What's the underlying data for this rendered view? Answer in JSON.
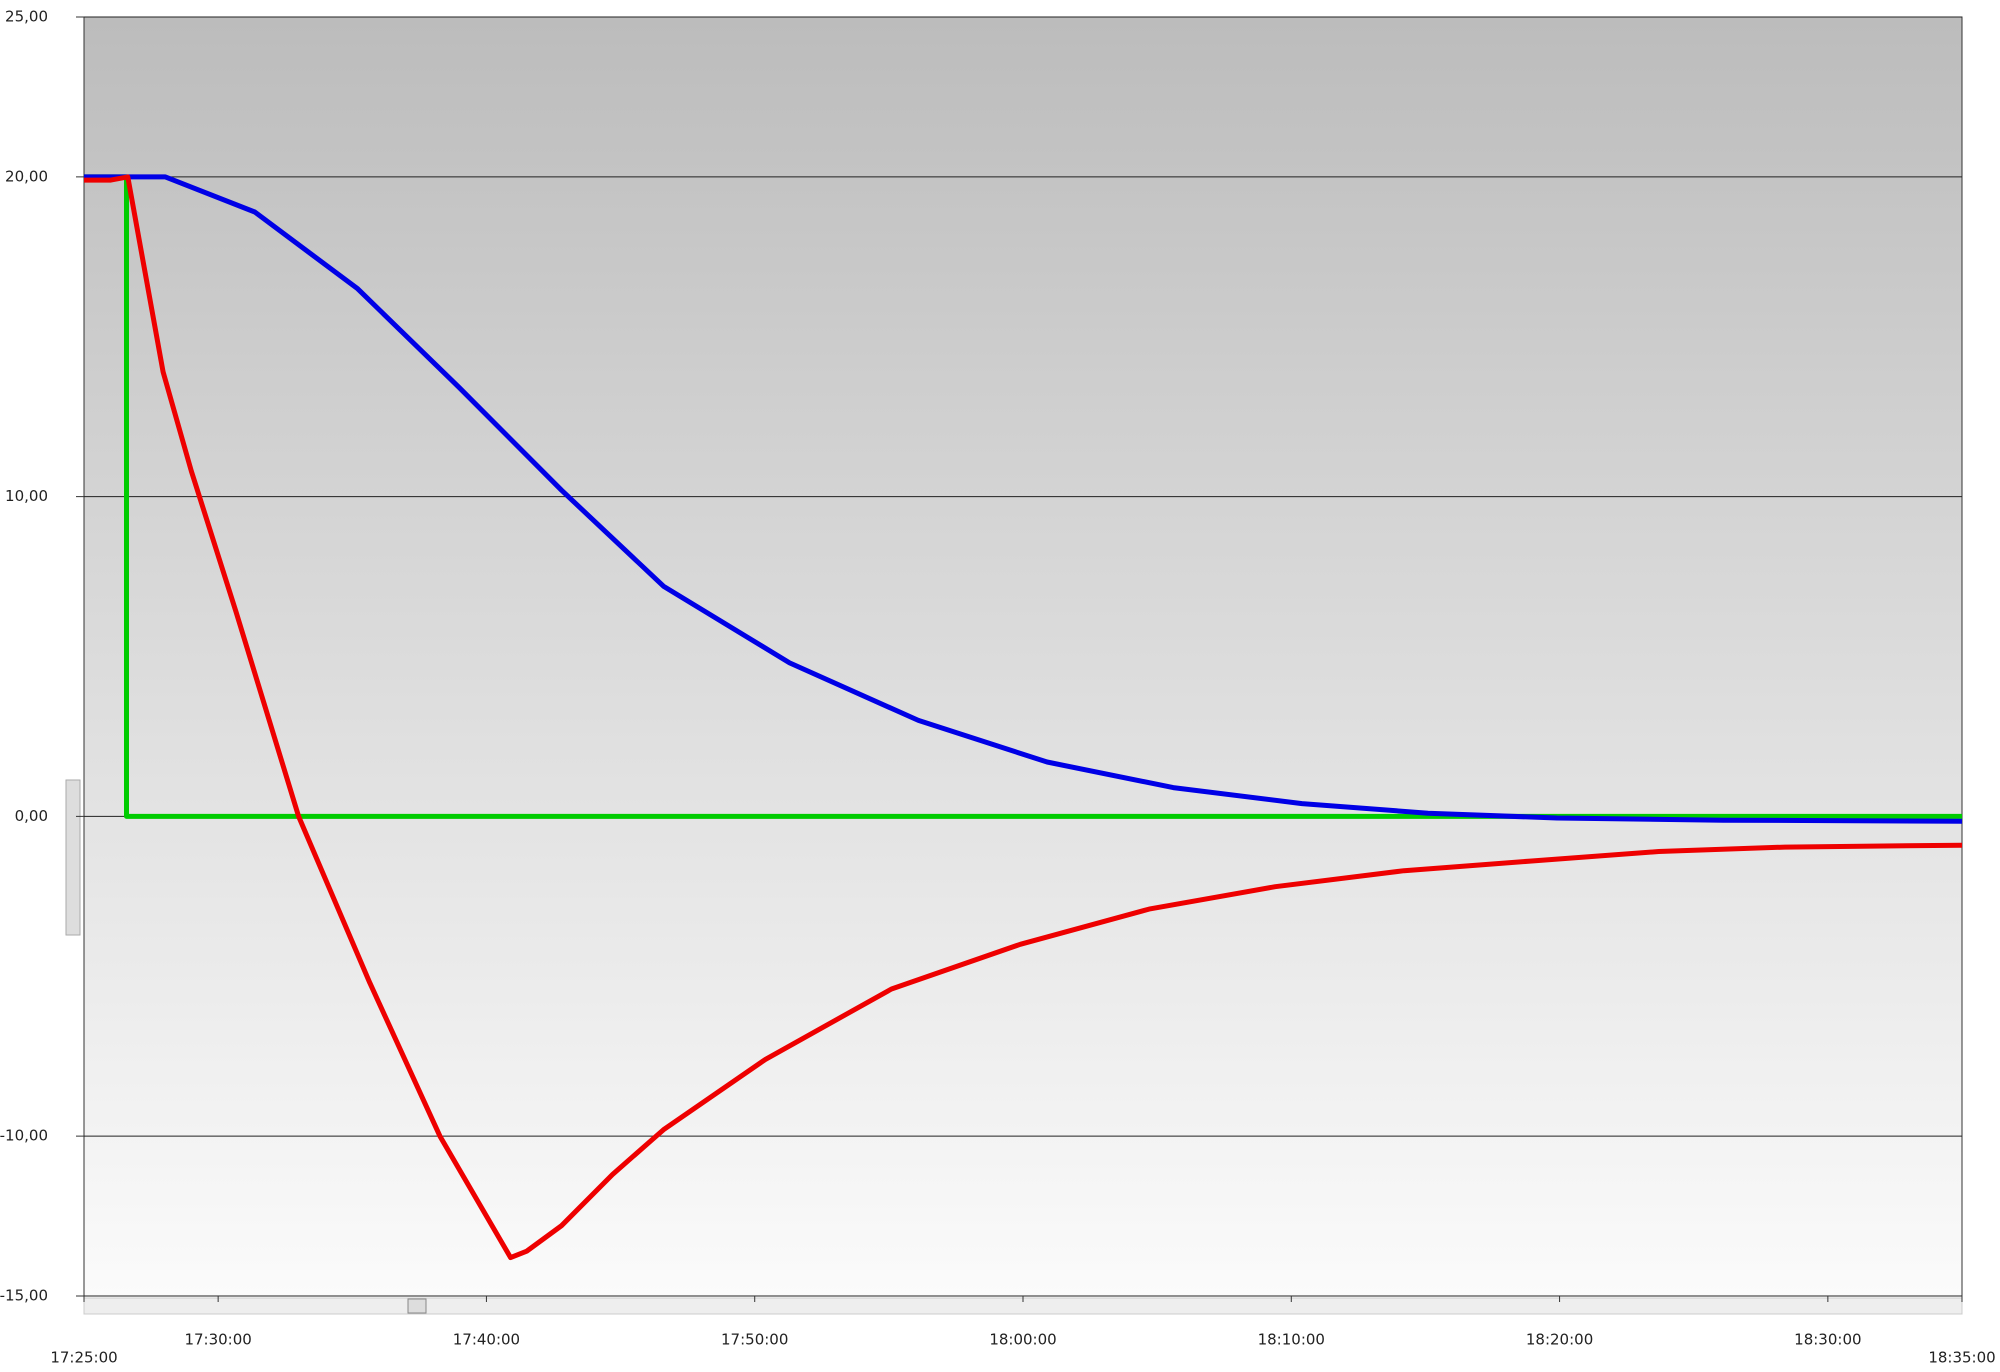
{
  "chart_data": {
    "type": "line",
    "xlim": [
      "17:25:00",
      "18:35:00"
    ],
    "xticks": [
      "17:25:00",
      "17:30:00",
      "17:40:00",
      "17:50:00",
      "18:00:00",
      "18:10:00",
      "18:20:00",
      "18:30:00",
      "18:35:00"
    ],
    "ylim": [
      -15,
      25
    ],
    "yticks": [
      {
        "value": -15,
        "label": "-15,00"
      },
      {
        "value": -10,
        "label": "-10,00"
      },
      {
        "value": 0,
        "label": "0,00"
      },
      {
        "value": 10,
        "label": "10,00"
      },
      {
        "value": 20,
        "label": "20,00"
      },
      {
        "value": 25,
        "label": "25,00"
      }
    ],
    "grid": true,
    "series": [
      {
        "color": "#00cc00",
        "x": [
          "17:25:00",
          "17:26:35",
          "17:26:35",
          "18:35:00"
        ],
        "values": [
          20,
          20,
          0,
          0
        ]
      },
      {
        "color": "#0000e6",
        "x": [
          "17:25:00",
          "17:28:02",
          "17:31:22",
          "17:35:12",
          "17:39:00",
          "17:42:48",
          "17:46:36",
          "17:51:18",
          "17:56:06",
          "18:00:54",
          "18:05:36",
          "18:10:24",
          "18:15:06",
          "18:19:54",
          "18:26:06",
          "18:35:00"
        ],
        "values": [
          20,
          20,
          18.9,
          16.5,
          13.4,
          10.2,
          7.2,
          4.8,
          3.0,
          1.7,
          0.9,
          0.4,
          0.1,
          -0.05,
          -0.12,
          -0.15
        ]
      },
      {
        "color": "#ee0000",
        "x": [
          "17:25:00",
          "17:26:00",
          "17:26:38",
          "17:27:57",
          "17:29:00",
          "17:30:40",
          "17:33:00",
          "17:35:39",
          "17:38:16",
          "17:40:54",
          "17:41:30",
          "17:42:48",
          "17:44:42",
          "17:46:36",
          "17:50:24",
          "17:55:06",
          "17:59:54",
          "18:04:42",
          "18:09:24",
          "18:14:12",
          "18:18:54",
          "18:23:42",
          "18:28:24",
          "18:35:00"
        ],
        "values": [
          19.9,
          19.9,
          20.0,
          13.9,
          10.8,
          6.4,
          0,
          -5.2,
          -10,
          -13.8,
          -13.6,
          -12.8,
          -11.2,
          -9.8,
          -7.6,
          -5.4,
          -4.0,
          -2.9,
          -2.2,
          -1.7,
          -1.4,
          -1.1,
          -0.96,
          -0.9
        ]
      }
    ]
  }
}
